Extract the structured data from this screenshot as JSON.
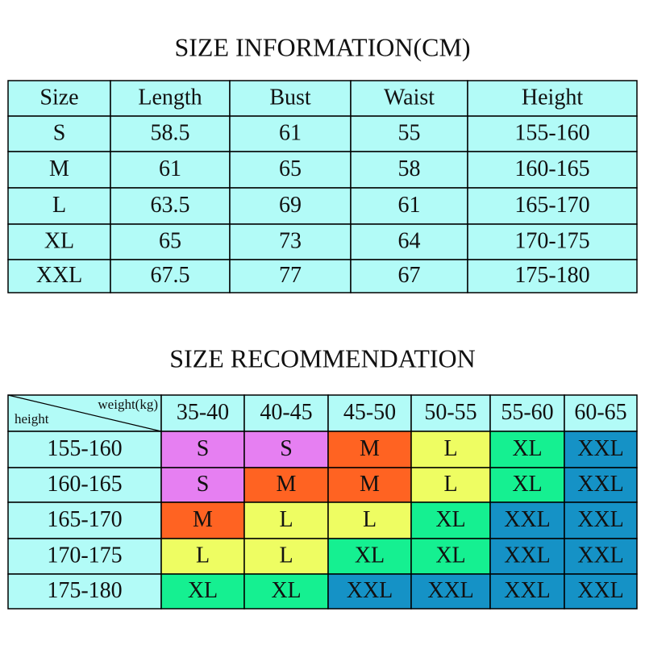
{
  "size_information": {
    "title": "SIZE INFORMATION(CM)",
    "header": [
      "Size",
      "Length",
      "Bust",
      "Waist",
      "Height"
    ],
    "rows": [
      [
        "S",
        "58.5",
        "61",
        "55",
        "155-160"
      ],
      [
        "M",
        "61",
        "65",
        "58",
        "160-165"
      ],
      [
        "L",
        "63.5",
        "69",
        "61",
        "165-170"
      ],
      [
        "XL",
        "65",
        "73",
        "64",
        "170-175"
      ],
      [
        "XXL",
        "67.5",
        "77",
        "67",
        "175-180"
      ]
    ]
  },
  "size_recommendation": {
    "title": "SIZE RECOMMENDATION",
    "corner": {
      "column_label": "weight(kg)",
      "row_label": "height"
    },
    "header": [
      "35-40",
      "40-45",
      "45-50",
      "50-55",
      "55-60",
      "60-65"
    ],
    "rows": [
      {
        "height": "155-160",
        "sizes": [
          "S",
          "S",
          "M",
          "L",
          "XL",
          "XXL"
        ]
      },
      {
        "height": "160-165",
        "sizes": [
          "S",
          "M",
          "M",
          "L",
          "XL",
          "XXL"
        ]
      },
      {
        "height": "165-170",
        "sizes": [
          "M",
          "L",
          "L",
          "XL",
          "XXL",
          "XXL"
        ]
      },
      {
        "height": "170-175",
        "sizes": [
          "L",
          "L",
          "XL",
          "XL",
          "XXL",
          "XXL"
        ]
      },
      {
        "height": "175-180",
        "sizes": [
          "XL",
          "XL",
          "XXL",
          "XXL",
          "XXL",
          "XXL"
        ]
      }
    ]
  },
  "cell_color": "#b2fbf7",
  "size_colors": {
    "S": "#e67ff2",
    "M": "#ff6322",
    "L": "#eefd62",
    "XL": "#15f091",
    "XXL": "#1592c6"
  }
}
